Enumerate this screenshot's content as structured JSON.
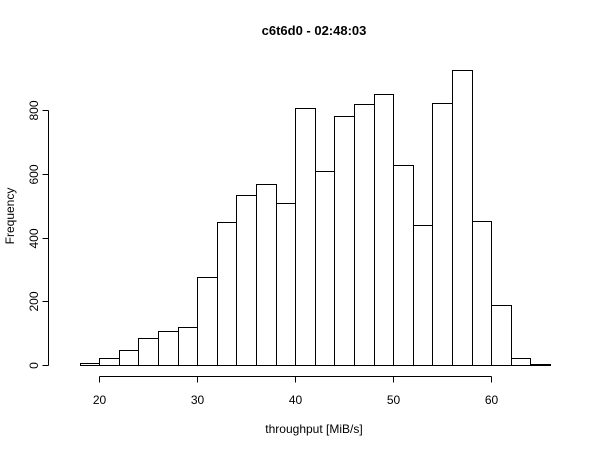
{
  "chart_data": {
    "type": "bar",
    "title": "c6t6d0 - 02:48:03",
    "xlabel": "throughput [MiB/s]",
    "ylabel": "Frequency",
    "bin_width": 2,
    "bins": [
      {
        "start": 16,
        "end": 18,
        "value": 0
      },
      {
        "start": 18,
        "end": 20,
        "value": 5
      },
      {
        "start": 20,
        "end": 22,
        "value": 23
      },
      {
        "start": 22,
        "end": 24,
        "value": 47
      },
      {
        "start": 24,
        "end": 26,
        "value": 86
      },
      {
        "start": 26,
        "end": 28,
        "value": 107
      },
      {
        "start": 28,
        "end": 30,
        "value": 118
      },
      {
        "start": 30,
        "end": 32,
        "value": 278
      },
      {
        "start": 32,
        "end": 34,
        "value": 450
      },
      {
        "start": 34,
        "end": 36,
        "value": 533
      },
      {
        "start": 36,
        "end": 38,
        "value": 570
      },
      {
        "start": 38,
        "end": 40,
        "value": 510
      },
      {
        "start": 40,
        "end": 42,
        "value": 808
      },
      {
        "start": 42,
        "end": 44,
        "value": 610
      },
      {
        "start": 44,
        "end": 46,
        "value": 782
      },
      {
        "start": 46,
        "end": 48,
        "value": 820
      },
      {
        "start": 48,
        "end": 50,
        "value": 853
      },
      {
        "start": 50,
        "end": 52,
        "value": 627
      },
      {
        "start": 52,
        "end": 54,
        "value": 440
      },
      {
        "start": 54,
        "end": 56,
        "value": 823
      },
      {
        "start": 56,
        "end": 58,
        "value": 927
      },
      {
        "start": 58,
        "end": 60,
        "value": 452
      },
      {
        "start": 60,
        "end": 62,
        "value": 187
      },
      {
        "start": 62,
        "end": 64,
        "value": 22
      },
      {
        "start": 64,
        "end": 66,
        "value": 3
      }
    ],
    "xlim": [
      16,
      66
    ],
    "ylim": [
      0,
      927
    ],
    "xticks": [
      20,
      30,
      40,
      50,
      60
    ],
    "yticks": [
      0,
      200,
      400,
      600,
      800
    ],
    "grid": false,
    "legend": "none"
  }
}
